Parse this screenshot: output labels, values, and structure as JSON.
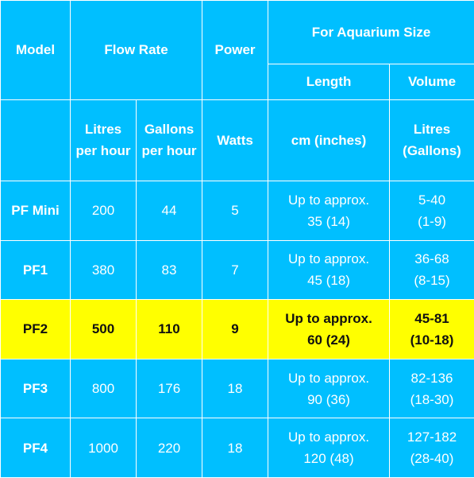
{
  "header": {
    "model": "Model",
    "flow_rate": "Flow Rate",
    "power": "Power",
    "aquarium_size": "For Aquarium Size",
    "length": "Length",
    "volume": "Volume",
    "units": {
      "litres_per_hour": [
        "Litres",
        "per hour"
      ],
      "gallons_per_hour": [
        "Gallons",
        "per hour"
      ],
      "watts": "Watts",
      "cm_inches": "cm (inches)",
      "litres_gallons": [
        "Litres",
        "(Gallons)"
      ]
    }
  },
  "rows": [
    {
      "model": "PF Mini",
      "litres": "200",
      "gallons": "44",
      "watts": "5",
      "length": [
        "Up to approx.",
        "35 (14)"
      ],
      "volume": [
        "5-40",
        "(1-9)"
      ],
      "highlighted": false
    },
    {
      "model": "PF1",
      "litres": "380",
      "gallons": "83",
      "watts": "7",
      "length": [
        "Up to approx.",
        "45 (18)"
      ],
      "volume": [
        "36-68",
        "(8-15)"
      ],
      "highlighted": false
    },
    {
      "model": "PF2",
      "litres": "500",
      "gallons": "110",
      "watts": "9",
      "length": [
        "Up to approx.",
        "60 (24)"
      ],
      "volume": [
        "45-81",
        "(10-18)"
      ],
      "highlighted": true
    },
    {
      "model": "PF3",
      "litres": "800",
      "gallons": "176",
      "watts": "18",
      "length": [
        "Up to approx.",
        "90 (36)"
      ],
      "volume": [
        "82-136",
        "(18-30)"
      ],
      "highlighted": false
    },
    {
      "model": "PF4",
      "litres": "1000",
      "gallons": "220",
      "watts": "18",
      "length": [
        "Up to approx.",
        "120 (48)"
      ],
      "volume": [
        "127-182",
        "(28-40)"
      ],
      "highlighted": false
    }
  ],
  "colors": {
    "background": "#00bfff",
    "border": "#ffffff",
    "highlight": "#ffff00",
    "text": "#ffffff",
    "highlight_text": "#111111"
  }
}
